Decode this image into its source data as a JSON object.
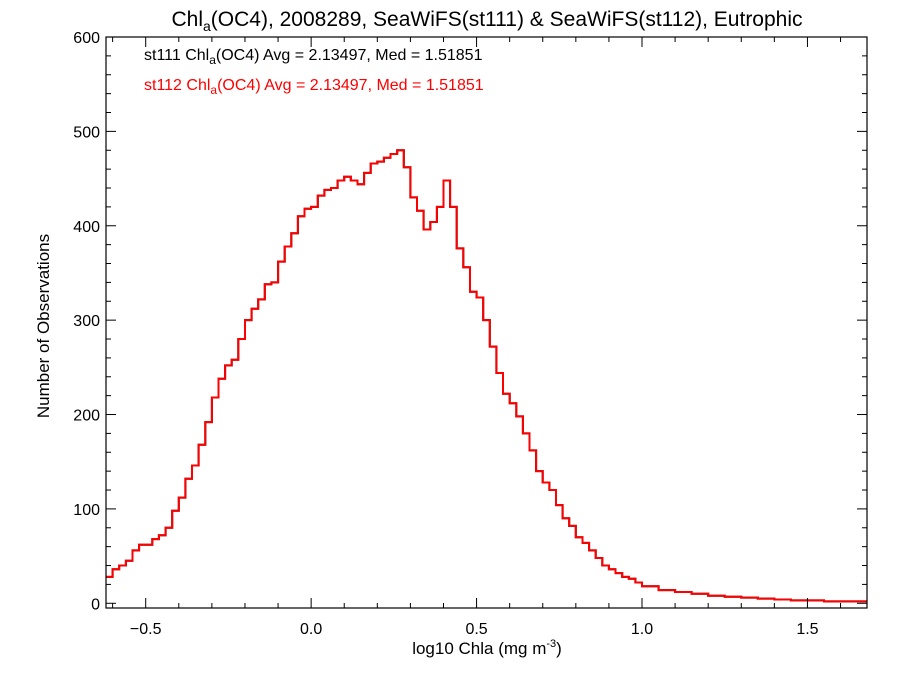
{
  "chart_data": {
    "type": "line",
    "title": {
      "main": "Chl",
      "sub": "a",
      "rest": "(OC4), 2008289, SeaWiFS(st111) & SeaWiFS(st112), Eutrophic"
    },
    "xlabel": {
      "main": "log10 Chla (mg m",
      "sup": "-3",
      "close": ")"
    },
    "ylabel": "Number of Observations",
    "xlim": [
      -0.62,
      1.68
    ],
    "ylim": [
      -5,
      600
    ],
    "x_ticks": [
      -0.5,
      0.0,
      0.5,
      1.0,
      1.5
    ],
    "x_tick_labels": [
      "−0.5",
      "0.0",
      "0.5",
      "1.0",
      "1.5"
    ],
    "y_ticks": [
      0,
      100,
      200,
      300,
      400,
      500,
      600
    ],
    "y_tick_labels": [
      "0",
      "100",
      "200",
      "300",
      "400",
      "500",
      "600"
    ],
    "legend": [
      {
        "prefix": "st111 Chl",
        "sub": "a",
        "suffix": "(OC4) Avg = 2.13497, Med = 1.51851",
        "color": "#000000"
      },
      {
        "prefix": "st112 Chl",
        "sub": "a",
        "suffix": "(OC4) Avg = 2.13497, Med = 1.51851",
        "color": "#ff0000"
      }
    ],
    "legend_placement": "top-left",
    "series_colors": [
      "#000000",
      "#ff0000"
    ],
    "histogram_peak": {
      "x": 0.25,
      "y": 480
    },
    "secondary_peak": {
      "x": 0.39,
      "y": 448
    },
    "bin_width": 0.01,
    "x": [
      -0.62,
      -0.6,
      -0.58,
      -0.56,
      -0.54,
      -0.52,
      -0.5,
      -0.48,
      -0.46,
      -0.44,
      -0.42,
      -0.4,
      -0.38,
      -0.36,
      -0.34,
      -0.32,
      -0.3,
      -0.28,
      -0.26,
      -0.24,
      -0.22,
      -0.2,
      -0.18,
      -0.16,
      -0.14,
      -0.12,
      -0.1,
      -0.08,
      -0.06,
      -0.04,
      -0.02,
      0.0,
      0.02,
      0.04,
      0.06,
      0.08,
      0.1,
      0.12,
      0.14,
      0.16,
      0.18,
      0.2,
      0.22,
      0.24,
      0.26,
      0.28,
      0.3,
      0.32,
      0.34,
      0.36,
      0.38,
      0.4,
      0.42,
      0.44,
      0.46,
      0.48,
      0.5,
      0.52,
      0.54,
      0.56,
      0.58,
      0.6,
      0.62,
      0.64,
      0.66,
      0.68,
      0.7,
      0.72,
      0.74,
      0.76,
      0.78,
      0.8,
      0.82,
      0.84,
      0.86,
      0.88,
      0.9,
      0.92,
      0.94,
      0.96,
      0.98,
      1.0,
      1.05,
      1.1,
      1.15,
      1.2,
      1.25,
      1.3,
      1.35,
      1.4,
      1.45,
      1.5,
      1.55,
      1.6,
      1.65,
      1.68
    ],
    "series": [
      {
        "values": [
          28,
          36,
          40,
          45,
          56,
          62,
          62,
          68,
          72,
          80,
          98,
          112,
          132,
          146,
          168,
          192,
          218,
          238,
          252,
          258,
          280,
          300,
          312,
          322,
          338,
          340,
          362,
          378,
          392,
          410,
          418,
          420,
          432,
          438,
          440,
          448,
          452,
          448,
          444,
          456,
          466,
          468,
          472,
          476,
          480,
          462,
          430,
          416,
          396,
          404,
          420,
          448,
          420,
          376,
          356,
          330,
          324,
          300,
          272,
          244,
          222,
          212,
          198,
          180,
          162,
          140,
          128,
          120,
          104,
          90,
          82,
          70,
          64,
          56,
          48,
          40,
          36,
          32,
          28,
          26,
          22,
          18,
          14,
          12,
          10,
          8,
          7,
          6,
          5,
          4,
          3,
          3,
          2,
          2,
          2,
          2
        ]
      },
      {
        "values": [
          28,
          36,
          40,
          45,
          56,
          62,
          62,
          68,
          72,
          80,
          98,
          112,
          132,
          146,
          168,
          192,
          218,
          238,
          252,
          258,
          280,
          300,
          312,
          322,
          338,
          340,
          362,
          378,
          392,
          410,
          418,
          420,
          432,
          438,
          440,
          448,
          452,
          448,
          444,
          456,
          466,
          468,
          472,
          476,
          480,
          462,
          430,
          416,
          396,
          404,
          420,
          448,
          420,
          376,
          356,
          330,
          324,
          300,
          272,
          244,
          222,
          212,
          198,
          180,
          162,
          140,
          128,
          120,
          104,
          90,
          82,
          70,
          64,
          56,
          48,
          40,
          36,
          32,
          28,
          26,
          22,
          18,
          14,
          12,
          10,
          8,
          7,
          6,
          5,
          4,
          3,
          3,
          2,
          2,
          2,
          2
        ]
      }
    ]
  }
}
